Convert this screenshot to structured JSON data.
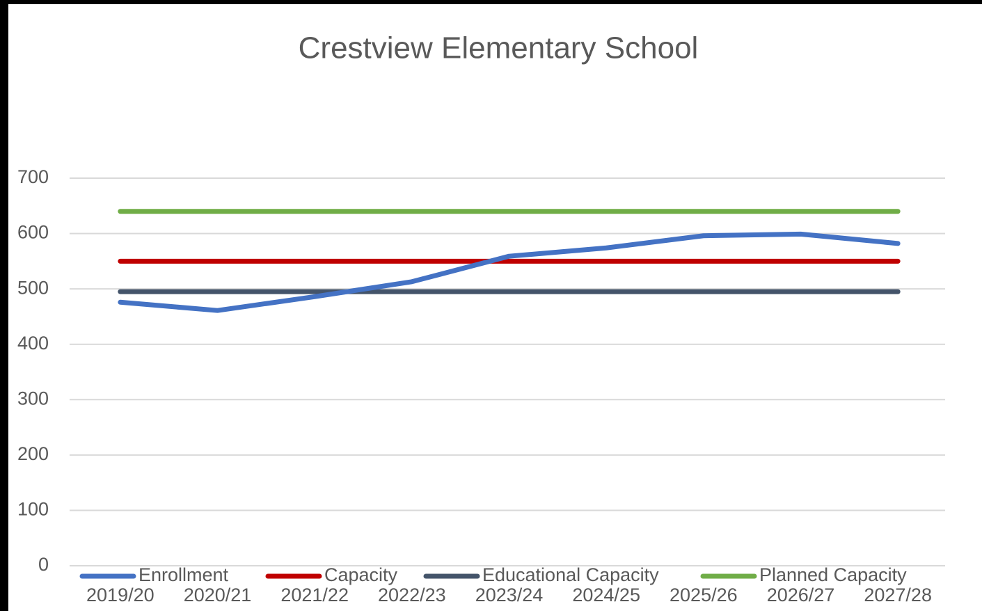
{
  "chart_data": {
    "type": "line",
    "title": "Crestview Elementary School",
    "categories": [
      "2019/20",
      "2020/21",
      "2021/22",
      "2022/23",
      "2023/24",
      "2024/25",
      "2025/26",
      "2026/27",
      "2027/28"
    ],
    "series": [
      {
        "name": "Enrollment",
        "color": "#4472c4",
        "values": [
          476,
          461,
          486,
          513,
          559,
          574,
          596,
          599,
          582
        ]
      },
      {
        "name": "Capacity",
        "color": "#c00000",
        "values": [
          550,
          550,
          550,
          550,
          550,
          550,
          550,
          550,
          550
        ]
      },
      {
        "name": "Educational Capacity",
        "color": "#44546a",
        "values": [
          495,
          495,
          495,
          495,
          495,
          495,
          495,
          495,
          495
        ]
      },
      {
        "name": "Planned Capacity",
        "color": "#70ad47",
        "values": [
          640,
          640,
          640,
          640,
          640,
          640,
          640,
          640,
          640
        ]
      }
    ],
    "ylim": [
      0,
      700
    ],
    "yticks": [
      0,
      100,
      200,
      300,
      400,
      500,
      600,
      700
    ],
    "grid": true,
    "legend": "bottom"
  }
}
